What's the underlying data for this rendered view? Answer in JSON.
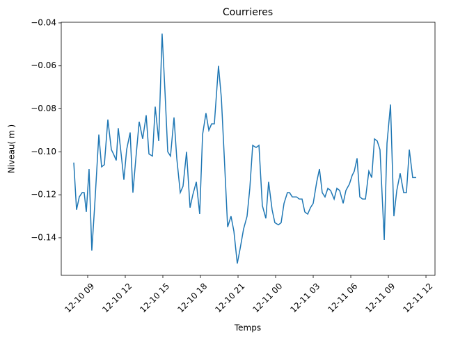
{
  "chart_data": {
    "type": "line",
    "title": "Courrieres",
    "x_label": "Temps",
    "y_label": "Niveau( m )",
    "xlim": [
      6.89,
      36.72
    ],
    "ylim": [
      -0.1575,
      -0.0397
    ],
    "xticks": [
      {
        "value": 9,
        "label": "12-10 09"
      },
      {
        "value": 12,
        "label": "12-10 12"
      },
      {
        "value": 15,
        "label": "12-10 15"
      },
      {
        "value": 18,
        "label": "12-10 18"
      },
      {
        "value": 21,
        "label": "12-10 21"
      },
      {
        "value": 24,
        "label": "12-11 00"
      },
      {
        "value": 27,
        "label": "12-11 03"
      },
      {
        "value": 30,
        "label": "12-11 06"
      },
      {
        "value": 33,
        "label": "12-11 09"
      },
      {
        "value": 36,
        "label": "12-11 12"
      }
    ],
    "yticks": [
      {
        "value": -0.14,
        "label": "−0.14"
      },
      {
        "value": -0.12,
        "label": "−0.12"
      },
      {
        "value": -0.1,
        "label": "−0.10"
      },
      {
        "value": -0.08,
        "label": "−0.08"
      },
      {
        "value": -0.06,
        "label": "−0.06"
      },
      {
        "value": -0.04,
        "label": "−0.04"
      }
    ],
    "grid": false,
    "x": [
      7.89,
      8.11,
      8.33,
      8.56,
      8.72,
      8.89,
      9.11,
      9.33,
      9.56,
      9.89,
      10.11,
      10.33,
      10.61,
      10.89,
      11.06,
      11.28,
      11.44,
      11.67,
      11.89,
      12.11,
      12.39,
      12.61,
      12.83,
      13.11,
      13.39,
      13.67,
      13.89,
      14.17,
      14.39,
      14.67,
      14.94,
      15.17,
      15.39,
      15.61,
      15.89,
      16.11,
      16.39,
      16.61,
      16.89,
      17.17,
      17.39,
      17.67,
      17.94,
      18.17,
      18.44,
      18.67,
      18.89,
      19.11,
      19.44,
      19.67,
      19.89,
      20.17,
      20.44,
      20.67,
      20.94,
      21.17,
      21.44,
      21.72,
      21.94,
      22.17,
      22.44,
      22.67,
      22.94,
      23.22,
      23.44,
      23.72,
      23.94,
      24.22,
      24.44,
      24.67,
      24.94,
      25.11,
      25.33,
      25.67,
      25.89,
      26.11,
      26.33,
      26.56,
      26.78,
      27,
      27.28,
      27.5,
      27.72,
      27.94,
      28.17,
      28.39,
      28.67,
      28.89,
      29.11,
      29.39,
      29.61,
      29.89,
      30.11,
      30.28,
      30.5,
      30.72,
      30.94,
      31.17,
      31.44,
      31.67,
      31.89,
      32.11,
      32.33,
      32.67,
      32.89,
      33.17,
      33.44,
      33.67,
      33.94,
      34.22,
      34.44,
      34.67,
      34.94,
      35.22
    ],
    "series": [
      {
        "color": "#1f77b4",
        "values": [
          -0.105,
          -0.127,
          -0.121,
          -0.119,
          -0.119,
          -0.128,
          -0.108,
          -0.146,
          -0.125,
          -0.092,
          -0.107,
          -0.106,
          -0.085,
          -0.099,
          -0.101,
          -0.104,
          -0.089,
          -0.101,
          -0.113,
          -0.099,
          -0.091,
          -0.119,
          -0.104,
          -0.086,
          -0.094,
          -0.083,
          -0.101,
          -0.102,
          -0.079,
          -0.095,
          -0.045,
          -0.072,
          -0.1,
          -0.102,
          -0.084,
          -0.103,
          -0.119,
          -0.116,
          -0.1,
          -0.126,
          -0.12,
          -0.114,
          -0.129,
          -0.092,
          -0.082,
          -0.09,
          -0.087,
          -0.087,
          -0.06,
          -0.075,
          -0.101,
          -0.135,
          -0.13,
          -0.137,
          -0.152,
          -0.145,
          -0.136,
          -0.13,
          -0.117,
          -0.097,
          -0.098,
          -0.097,
          -0.125,
          -0.131,
          -0.114,
          -0.127,
          -0.133,
          -0.134,
          -0.133,
          -0.124,
          -0.119,
          -0.119,
          -0.121,
          -0.121,
          -0.122,
          -0.122,
          -0.128,
          -0.129,
          -0.126,
          -0.124,
          -0.114,
          -0.108,
          -0.119,
          -0.121,
          -0.117,
          -0.118,
          -0.122,
          -0.117,
          -0.118,
          -0.124,
          -0.118,
          -0.115,
          -0.111,
          -0.109,
          -0.103,
          -0.121,
          -0.122,
          -0.122,
          -0.109,
          -0.112,
          -0.094,
          -0.095,
          -0.099,
          -0.141,
          -0.096,
          -0.078,
          -0.13,
          -0.118,
          -0.11,
          -0.119,
          -0.119,
          -0.099,
          -0.112,
          -0.112
        ]
      }
    ]
  }
}
